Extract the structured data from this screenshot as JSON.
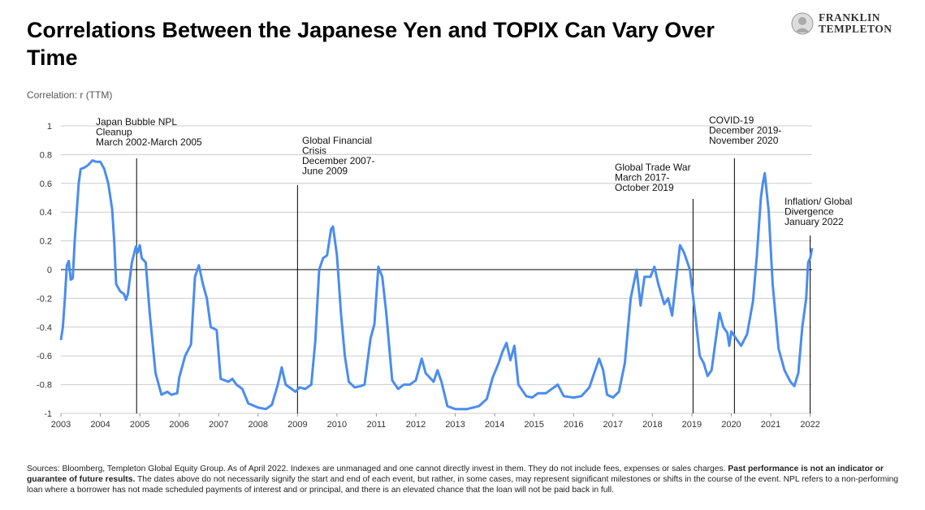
{
  "header": {
    "logo": [
      "FRANKLIN",
      "TEMPLETON"
    ]
  },
  "chart_data": {
    "type": "line",
    "title": "Correlations Between the Japanese Yen and TOPIX Can Vary Over Time",
    "y_label": "Correlation: r (TTM)",
    "xlim": [
      2003,
      2022.05
    ],
    "xticks": [
      2003,
      2004,
      2005,
      2006,
      2007,
      2008,
      2009,
      2010,
      2011,
      2012,
      2013,
      2014,
      2015,
      2016,
      2017,
      2018,
      2019,
      2020,
      2021,
      2022
    ],
    "ylim": [
      -1,
      1
    ],
    "yticks": [
      1,
      0.8,
      0.6,
      0.4,
      0.2,
      0,
      -0.2,
      -0.4,
      -0.6,
      -0.8,
      -1
    ],
    "grid": true,
    "series": [
      {
        "color": "#4a8cf0",
        "x": [
          2003.0,
          2003.05,
          2003.1,
          2003.15,
          2003.2,
          2003.25,
          2003.3,
          2003.35,
          2003.45,
          2003.5,
          2003.6,
          2003.7,
          2003.8,
          2003.9,
          2004.0,
          2004.1,
          2004.2,
          2004.3,
          2004.35,
          2004.4,
          2004.5,
          2004.6,
          2004.65,
          2004.7,
          2004.8,
          2004.9,
          2004.95,
          2005.0,
          2005.05,
          2005.15,
          2005.25,
          2005.4,
          2005.55,
          2005.7,
          2005.8,
          2005.95,
          2006.0,
          2006.15,
          2006.3,
          2006.4,
          2006.5,
          2006.6,
          2006.7,
          2006.8,
          2006.95,
          2007.05,
          2007.25,
          2007.35,
          2007.45,
          2007.6,
          2007.75,
          2008.0,
          2008.2,
          2008.35,
          2008.5,
          2008.6,
          2008.7,
          2008.85,
          2008.95,
          2009.05,
          2009.2,
          2009.35,
          2009.45,
          2009.55,
          2009.65,
          2009.75,
          2009.85,
          2009.9,
          2010.0,
          2010.1,
          2010.2,
          2010.3,
          2010.45,
          2010.6,
          2010.7,
          2010.85,
          2010.95,
          2011.05,
          2011.15,
          2011.25,
          2011.4,
          2011.55,
          2011.7,
          2011.85,
          2012.0,
          2012.15,
          2012.25,
          2012.35,
          2012.45,
          2012.55,
          2012.65,
          2012.8,
          2013.0,
          2013.3,
          2013.6,
          2013.8,
          2013.95,
          2014.1,
          2014.2,
          2014.3,
          2014.4,
          2014.5,
          2014.6,
          2014.8,
          2014.95,
          2015.1,
          2015.3,
          2015.45,
          2015.6,
          2015.75,
          2016.0,
          2016.2,
          2016.4,
          2016.55,
          2016.65,
          2016.75,
          2016.85,
          2017.0,
          2017.15,
          2017.3,
          2017.45,
          2017.6,
          2017.7,
          2017.8,
          2017.95,
          2018.05,
          2018.15,
          2018.3,
          2018.4,
          2018.5,
          2018.65,
          2018.7,
          2018.8,
          2018.95,
          2019.1,
          2019.2,
          2019.3,
          2019.4,
          2019.5,
          2019.6,
          2019.7,
          2019.8,
          2019.9,
          2019.95,
          2020.0,
          2020.1,
          2020.25,
          2020.4,
          2020.55,
          2020.65,
          2020.75,
          2020.8,
          2020.85,
          2020.95,
          2021.05,
          2021.2,
          2021.35,
          2021.5,
          2021.6,
          2021.7,
          2021.8,
          2021.9,
          2021.95,
          2022.0,
          2022.05
        ],
        "values": [
          -0.49,
          -0.4,
          -0.2,
          0.03,
          0.06,
          -0.07,
          -0.06,
          0.2,
          0.6,
          0.7,
          0.71,
          0.73,
          0.76,
          0.75,
          0.75,
          0.7,
          0.6,
          0.42,
          0.2,
          -0.1,
          -0.15,
          -0.17,
          -0.21,
          -0.17,
          0.05,
          0.16,
          0.12,
          0.17,
          0.08,
          0.05,
          -0.3,
          -0.72,
          -0.87,
          -0.85,
          -0.87,
          -0.86,
          -0.75,
          -0.6,
          -0.52,
          -0.05,
          0.03,
          -0.1,
          -0.2,
          -0.4,
          -0.42,
          -0.76,
          -0.78,
          -0.76,
          -0.8,
          -0.83,
          -0.93,
          -0.96,
          -0.97,
          -0.94,
          -0.8,
          -0.68,
          -0.8,
          -0.83,
          -0.85,
          -0.82,
          -0.83,
          -0.8,
          -0.5,
          0.0,
          0.08,
          0.1,
          0.28,
          0.3,
          0.1,
          -0.3,
          -0.6,
          -0.78,
          -0.82,
          -0.81,
          -0.8,
          -0.48,
          -0.38,
          0.02,
          -0.05,
          -0.3,
          -0.77,
          -0.83,
          -0.8,
          -0.8,
          -0.77,
          -0.62,
          -0.72,
          -0.75,
          -0.78,
          -0.7,
          -0.78,
          -0.95,
          -0.97,
          -0.97,
          -0.95,
          -0.9,
          -0.75,
          -0.65,
          -0.57,
          -0.51,
          -0.63,
          -0.53,
          -0.8,
          -0.88,
          -0.89,
          -0.86,
          -0.86,
          -0.83,
          -0.8,
          -0.88,
          -0.89,
          -0.88,
          -0.82,
          -0.7,
          -0.62,
          -0.7,
          -0.87,
          -0.89,
          -0.85,
          -0.65,
          -0.2,
          0.0,
          -0.25,
          -0.05,
          -0.05,
          0.02,
          -0.1,
          -0.24,
          -0.2,
          -0.32,
          0.05,
          0.17,
          0.12,
          0.0,
          -0.35,
          -0.6,
          -0.65,
          -0.74,
          -0.7,
          -0.5,
          -0.3,
          -0.4,
          -0.44,
          -0.53,
          -0.43,
          -0.47,
          -0.53,
          -0.45,
          -0.22,
          0.1,
          0.5,
          0.6,
          0.67,
          0.4,
          -0.1,
          -0.55,
          -0.7,
          -0.78,
          -0.81,
          -0.72,
          -0.4,
          -0.2,
          0.05,
          0.08,
          0.15
        ]
      }
    ],
    "annotations": [
      {
        "x": 2004.92,
        "text": [
          "Japan Bubble NPL",
          "Cleanup",
          "March 2002-March 2005"
        ]
      },
      {
        "x": 2009.0,
        "text": [
          "Global Financial",
          "Crisis",
          "December 2007-",
          "June 2009"
        ]
      },
      {
        "x": 2019.03,
        "text": [
          "Global Trade War",
          "March 2017-",
          "October 2019"
        ]
      },
      {
        "x": 2020.08,
        "text": [
          "COVID-19",
          "December 2019-",
          "November 2020"
        ]
      },
      {
        "x": 2022.0,
        "text": [
          "Inflation/ Global",
          "Divergence",
          "January 2022"
        ]
      }
    ]
  },
  "footer": {
    "parts": [
      "Sources: Bloomberg, Templeton Global Equity Group. As of April 2022. Indexes are unmanaged and one cannot directly invest in them. They do not include fees, expenses or sales charges. ",
      "Past performance is not an indicator or guarantee of future results.",
      " The dates above do not necessarily signify the start and end of each event, but rather, in some cases, may represent significant milestones or shifts in the course of the event. NPL refers to a non-performing loan where a borrower has not made scheduled payments of interest and or principal, and there is an elevated chance that the loan will not be paid back in full."
    ]
  }
}
